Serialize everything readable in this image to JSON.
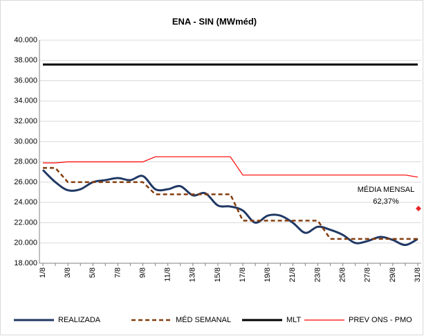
{
  "chart_data": {
    "type": "line",
    "title": "ENA - SIN (MWméd)",
    "categories": [
      "1/8",
      null,
      "3/8",
      null,
      "5/8",
      null,
      "7/8",
      null,
      "9/8",
      null,
      "11/8",
      null,
      "13/8",
      null,
      "15/8",
      null,
      "17/8",
      null,
      "19/8",
      null,
      "21/8",
      null,
      "23/8",
      null,
      "25/8",
      null,
      "27/8",
      null,
      "29/8",
      null,
      "31/8"
    ],
    "series": [
      {
        "name": "REALIZADA",
        "color": "#203864",
        "style": "smooth",
        "values": [
          27200,
          26000,
          25200,
          25300,
          26000,
          26200,
          26400,
          26200,
          26600,
          25300,
          25300,
          25600,
          24700,
          24900,
          23700,
          23600,
          23200,
          22000,
          22700,
          22700,
          22000,
          21000,
          21600,
          21300,
          20800,
          20000,
          20200,
          20600,
          20300,
          19800,
          20400
        ]
      },
      {
        "name": "MÉD SEMANAL",
        "color": "#843c0c",
        "style": "dashed",
        "values": [
          27400,
          27400,
          26000,
          26000,
          26000,
          26000,
          26000,
          26000,
          26000,
          24800,
          24800,
          24800,
          24800,
          24800,
          24800,
          24800,
          22200,
          22200,
          22200,
          22200,
          22200,
          22200,
          22200,
          20400,
          20400,
          20400,
          20400,
          20400,
          20400,
          20400,
          20400
        ]
      },
      {
        "name": "MLT",
        "color": "#000000",
        "style": "thick",
        "values": [
          37600,
          37600,
          37600,
          37600,
          37600,
          37600,
          37600,
          37600,
          37600,
          37600,
          37600,
          37600,
          37600,
          37600,
          37600,
          37600,
          37600,
          37600,
          37600,
          37600,
          37600,
          37600,
          37600,
          37600,
          37600,
          37600,
          37600,
          37600,
          37600,
          37600,
          37600
        ]
      },
      {
        "name": "PREV ONS - PMO",
        "color": "#ff0000",
        "style": "thin",
        "values": [
          27900,
          27900,
          28000,
          28000,
          28000,
          28000,
          28000,
          28000,
          28000,
          28500,
          28500,
          28500,
          28500,
          28500,
          28500,
          28500,
          26700,
          26700,
          26700,
          26700,
          26700,
          26700,
          26700,
          26700,
          26700,
          26700,
          26700,
          26700,
          26700,
          26700,
          26500
        ]
      }
    ],
    "annotation": {
      "lines": [
        "MÉDIA MENSAL",
        "62,37%"
      ],
      "value": 23400,
      "color": "#e8262a"
    },
    "ylim": [
      18000,
      40000
    ],
    "yticks": [
      {
        "value": 18000,
        "label": "18.000"
      },
      {
        "value": 20000,
        "label": "20.000"
      },
      {
        "value": 22000,
        "label": "22.000"
      },
      {
        "value": 24000,
        "label": "24.000"
      },
      {
        "value": 26000,
        "label": "26.000"
      },
      {
        "value": 28000,
        "label": "28.000"
      },
      {
        "value": 30000,
        "label": "30.000"
      },
      {
        "value": 32000,
        "label": "32.000"
      },
      {
        "value": 34000,
        "label": "34.000"
      },
      {
        "value": 36000,
        "label": "36.000"
      },
      {
        "value": 38000,
        "label": "38.000"
      },
      {
        "value": 40000,
        "label": "40.000"
      }
    ],
    "grid": true,
    "legend": "bottom"
  }
}
